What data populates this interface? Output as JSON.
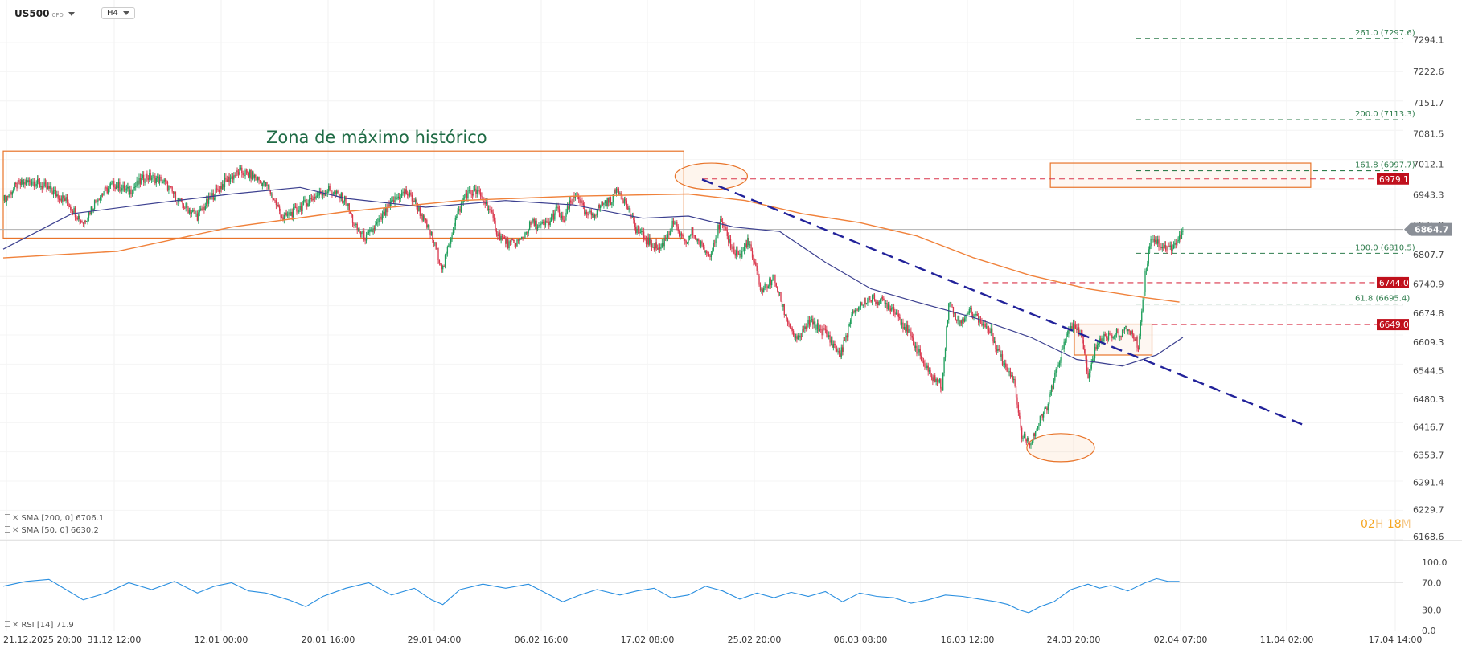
{
  "header": {
    "symbol": "US500",
    "instrument_type": "CFD",
    "timeframe": "H4"
  },
  "annotation_text": "Zona de máximo histórico",
  "indicators": [
    {
      "label": "SMA [200, 0]",
      "value": "6706.1",
      "color": "#f0813a"
    },
    {
      "label": "SMA [50, 0]",
      "value": "6630.2",
      "color": "#3b3f8f"
    }
  ],
  "rsi_label": {
    "label": "RSI [14]",
    "value": "71.9",
    "color": "#2a8fe0"
  },
  "timer": {
    "h": "02",
    "h_unit": "H",
    "m": "18",
    "m_unit": "M"
  },
  "current_price": "6864.7",
  "price_axis": [
    "7294.1",
    "7222.6",
    "7151.7",
    "7081.5",
    "7012.1",
    "6943.3",
    "6875.0",
    "6807.7",
    "6740.9",
    "6674.8",
    "6609.3",
    "6544.5",
    "6480.3",
    "6416.7",
    "6353.7",
    "6291.4",
    "6229.7",
    "6168.6"
  ],
  "rsi_axis": [
    "100.0",
    "70.0",
    "30.0",
    "0.0"
  ],
  "time_axis": [
    "21.12.2025 20:00",
    "31.12 12:00",
    "12.01 00:00",
    "20.01 16:00",
    "29.01 04:00",
    "06.02 16:00",
    "17.02 08:00",
    "25.02 20:00",
    "06.03 08:00",
    "16.03 12:00",
    "24.03 20:00",
    "02.04 07:00",
    "11.04 02:00",
    "17.04 14:00"
  ],
  "fib_levels": [
    {
      "label": "261.0 (7297.6)",
      "value": 7297.6
    },
    {
      "label": "200.0 (7113.3)",
      "value": 7113.3
    },
    {
      "label": "161.8 (6997.7)",
      "value": 6997.7
    },
    {
      "label": "100.0 (6810.5)",
      "value": 6810.5
    },
    {
      "label": "61.8 (6695.4)",
      "value": 6695.4
    }
  ],
  "price_tags": [
    "6979.1",
    "6744.0",
    "6649.0"
  ],
  "colors": {
    "bull": "#1e9e5a",
    "bear": "#d9344a",
    "sma200": "#f0813a",
    "sma50": "#3b3f8f",
    "trendline": "#22229a",
    "zone": "#e8742a",
    "tag_red": "#c0101c",
    "fib": "#2f7d4d",
    "rsi": "#2a8fe0"
  },
  "chart_data": {
    "type": "candlestick",
    "symbol": "US500",
    "timeframe": "H4",
    "ylim": [
      6168.6,
      7330
    ],
    "close_path": [
      [
        0,
        6930
      ],
      [
        12,
        6965
      ],
      [
        25,
        6975
      ],
      [
        40,
        6955
      ],
      [
        55,
        6930
      ],
      [
        70,
        6880
      ],
      [
        82,
        6935
      ],
      [
        97,
        6968
      ],
      [
        110,
        6950
      ],
      [
        125,
        6985
      ],
      [
        140,
        6975
      ],
      [
        155,
        6925
      ],
      [
        170,
        6895
      ],
      [
        183,
        6940
      ],
      [
        195,
        6975
      ],
      [
        207,
        6995
      ],
      [
        220,
        6985
      ],
      [
        232,
        6960
      ],
      [
        245,
        6890
      ],
      [
        258,
        6910
      ],
      [
        270,
        6935
      ],
      [
        285,
        6955
      ],
      [
        300,
        6930
      ],
      [
        308,
        6870
      ],
      [
        318,
        6845
      ],
      [
        330,
        6885
      ],
      [
        342,
        6930
      ],
      [
        352,
        6950
      ],
      [
        360,
        6930
      ],
      [
        375,
        6850
      ],
      [
        385,
        6775
      ],
      [
        395,
        6880
      ],
      [
        405,
        6945
      ],
      [
        415,
        6950
      ],
      [
        425,
        6915
      ],
      [
        433,
        6855
      ],
      [
        443,
        6830
      ],
      [
        453,
        6840
      ],
      [
        463,
        6880
      ],
      [
        470,
        6870
      ],
      [
        478,
        6880
      ],
      [
        485,
        6910
      ],
      [
        490,
        6880
      ],
      [
        496,
        6920
      ],
      [
        503,
        6945
      ],
      [
        510,
        6895
      ],
      [
        517,
        6900
      ],
      [
        525,
        6925
      ],
      [
        532,
        6930
      ],
      [
        538,
        6960
      ],
      [
        546,
        6920
      ],
      [
        553,
        6870
      ],
      [
        563,
        6840
      ],
      [
        575,
        6820
      ],
      [
        587,
        6880
      ],
      [
        597,
        6830
      ],
      [
        603,
        6860
      ],
      [
        612,
        6825
      ],
      [
        618,
        6805
      ],
      [
        628,
        6880
      ],
      [
        640,
        6815
      ],
      [
        646,
        6805
      ],
      [
        652,
        6840
      ],
      [
        664,
        6725
      ],
      [
        675,
        6755
      ],
      [
        685,
        6670
      ],
      [
        695,
        6610
      ],
      [
        706,
        6655
      ],
      [
        720,
        6630
      ],
      [
        733,
        6580
      ],
      [
        745,
        6680
      ],
      [
        758,
        6710
      ],
      [
        770,
        6700
      ],
      [
        780,
        6685
      ],
      [
        795,
        6620
      ],
      [
        810,
        6540
      ],
      [
        822,
        6510
      ],
      [
        828,
        6700
      ],
      [
        838,
        6650
      ],
      [
        845,
        6680
      ],
      [
        855,
        6660
      ],
      [
        865,
        6630
      ],
      [
        876,
        6560
      ],
      [
        885,
        6530
      ],
      [
        892,
        6395
      ],
      [
        900,
        6385
      ],
      [
        905,
        6415
      ],
      [
        915,
        6470
      ],
      [
        925,
        6570
      ],
      [
        935,
        6650
      ],
      [
        945,
        6620
      ],
      [
        950,
        6525
      ],
      [
        958,
        6610
      ],
      [
        968,
        6625
      ],
      [
        978,
        6630
      ],
      [
        986,
        6640
      ],
      [
        994,
        6600
      ],
      [
        1000,
        6760
      ],
      [
        1005,
        6850
      ],
      [
        1013,
        6830
      ],
      [
        1021,
        6820
      ],
      [
        1029,
        6840
      ],
      [
        1033,
        6860
      ]
    ],
    "sma200": [
      [
        0,
        6800
      ],
      [
        100,
        6815
      ],
      [
        200,
        6870
      ],
      [
        300,
        6905
      ],
      [
        400,
        6930
      ],
      [
        500,
        6940
      ],
      [
        600,
        6945
      ],
      [
        650,
        6930
      ],
      [
        700,
        6900
      ],
      [
        750,
        6880
      ],
      [
        800,
        6850
      ],
      [
        850,
        6800
      ],
      [
        900,
        6760
      ],
      [
        950,
        6730
      ],
      [
        1000,
        6710
      ],
      [
        1030,
        6700
      ]
    ],
    "sma50": [
      [
        0,
        6820
      ],
      [
        60,
        6900
      ],
      [
        120,
        6920
      ],
      [
        200,
        6945
      ],
      [
        260,
        6960
      ],
      [
        300,
        6935
      ],
      [
        370,
        6915
      ],
      [
        440,
        6930
      ],
      [
        500,
        6920
      ],
      [
        560,
        6890
      ],
      [
        600,
        6895
      ],
      [
        640,
        6870
      ],
      [
        680,
        6860
      ],
      [
        720,
        6790
      ],
      [
        760,
        6730
      ],
      [
        800,
        6700
      ],
      [
        850,
        6665
      ],
      [
        900,
        6620
      ],
      [
        940,
        6570
      ],
      [
        980,
        6555
      ],
      [
        1010,
        6580
      ],
      [
        1033,
        6620
      ]
    ],
    "zones": [
      {
        "from": 0,
        "to": 596,
        "low": 6845,
        "high": 7042
      },
      {
        "from": 917,
        "to": 1145,
        "low": 6960,
        "high": 7015
      },
      {
        "from": 938,
        "to": 1006,
        "low": 6580,
        "high": 6650
      }
    ],
    "trendline": {
      "from": [
        612,
        6978
      ],
      "to": [
        1142,
        6418
      ]
    },
    "horizontal_levels": [
      {
        "value": 6979.1,
        "from": 612,
        "tag": true
      },
      {
        "value": 6744.0,
        "from": 858,
        "tag": true
      },
      {
        "value": 6649.0,
        "from": 1006,
        "tag": true
      },
      {
        "value": 6864.7,
        "from": 0,
        "current": true
      }
    ],
    "ellipses": [
      {
        "cx": 620,
        "cy_value": 6985,
        "rx": 30,
        "ry_value": 38
      },
      {
        "cx": 926,
        "cy_value": 6370,
        "rx": 28,
        "ry_value": 42
      }
    ],
    "rsi": {
      "ylim": [
        0,
        100
      ],
      "path": [
        [
          0,
          65
        ],
        [
          20,
          72
        ],
        [
          40,
          75
        ],
        [
          55,
          60
        ],
        [
          70,
          45
        ],
        [
          90,
          55
        ],
        [
          110,
          70
        ],
        [
          130,
          60
        ],
        [
          150,
          72
        ],
        [
          170,
          55
        ],
        [
          185,
          65
        ],
        [
          200,
          70
        ],
        [
          215,
          58
        ],
        [
          230,
          55
        ],
        [
          250,
          45
        ],
        [
          265,
          35
        ],
        [
          280,
          50
        ],
        [
          300,
          62
        ],
        [
          320,
          70
        ],
        [
          340,
          52
        ],
        [
          360,
          62
        ],
        [
          375,
          45
        ],
        [
          385,
          38
        ],
        [
          400,
          60
        ],
        [
          420,
          68
        ],
        [
          440,
          62
        ],
        [
          460,
          68
        ],
        [
          475,
          55
        ],
        [
          490,
          42
        ],
        [
          505,
          52
        ],
        [
          520,
          60
        ],
        [
          540,
          52
        ],
        [
          555,
          58
        ],
        [
          570,
          62
        ],
        [
          585,
          48
        ],
        [
          600,
          52
        ],
        [
          615,
          65
        ],
        [
          630,
          58
        ],
        [
          645,
          46
        ],
        [
          660,
          55
        ],
        [
          675,
          48
        ],
        [
          690,
          56
        ],
        [
          705,
          50
        ],
        [
          720,
          57
        ],
        [
          735,
          42
        ],
        [
          750,
          55
        ],
        [
          765,
          50
        ],
        [
          780,
          48
        ],
        [
          795,
          40
        ],
        [
          810,
          45
        ],
        [
          825,
          52
        ],
        [
          840,
          50
        ],
        [
          855,
          46
        ],
        [
          870,
          42
        ],
        [
          880,
          38
        ],
        [
          890,
          30
        ],
        [
          898,
          26
        ],
        [
          908,
          35
        ],
        [
          920,
          42
        ],
        [
          935,
          60
        ],
        [
          950,
          68
        ],
        [
          960,
          62
        ],
        [
          970,
          66
        ],
        [
          985,
          58
        ],
        [
          1000,
          70
        ],
        [
          1010,
          76
        ],
        [
          1020,
          72
        ],
        [
          1030,
          72
        ]
      ]
    }
  }
}
